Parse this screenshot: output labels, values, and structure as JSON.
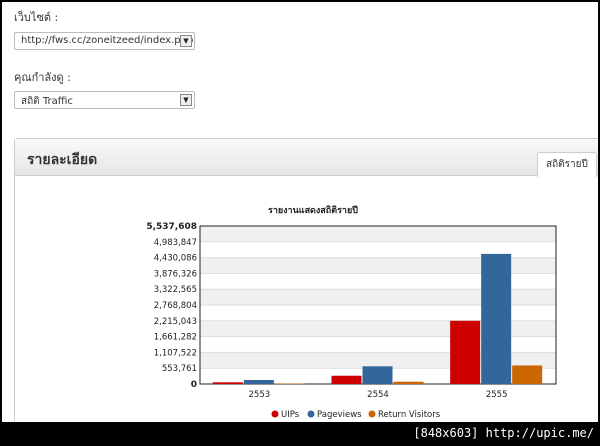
{
  "form": {
    "website_label": "เว็บไซต์ :",
    "website_value": "http://fws.cc/zoneitzeed/index.php",
    "view_label": "คุณกำลังดู :",
    "view_value": "สถิติ Traffic"
  },
  "panel": {
    "title": "รายละเอียด",
    "tab_label": "สถิติรายปี"
  },
  "watermark": "[848x603] http://upic.me/",
  "colors": {
    "uips": "#cc0000",
    "pageviews": "#336699",
    "return": "#cc6600"
  },
  "chart_data": {
    "type": "bar",
    "title": "รายงานแสดงสถิติรายปี",
    "categories": [
      "2553",
      "2554",
      "2555"
    ],
    "series": [
      {
        "name": "UIPs",
        "values": [
          60000,
          290000,
          2215043
        ]
      },
      {
        "name": "Pageviews",
        "values": [
          140000,
          620000,
          4560000
        ]
      },
      {
        "name": "Return Visitors",
        "values": [
          15000,
          80000,
          650000
        ]
      }
    ],
    "yticks": [
      "0",
      "553,761",
      "1,107,522",
      "1,661,282",
      "2,215,043",
      "2,768,804",
      "3,322,565",
      "3,876,326",
      "4,430,086",
      "4,983,847",
      "5,537,608"
    ],
    "ylim": [
      0,
      5537608
    ],
    "legend": [
      "UIPs",
      "Pageviews",
      "Return Visitors"
    ],
    "legend_position": "bottom"
  }
}
